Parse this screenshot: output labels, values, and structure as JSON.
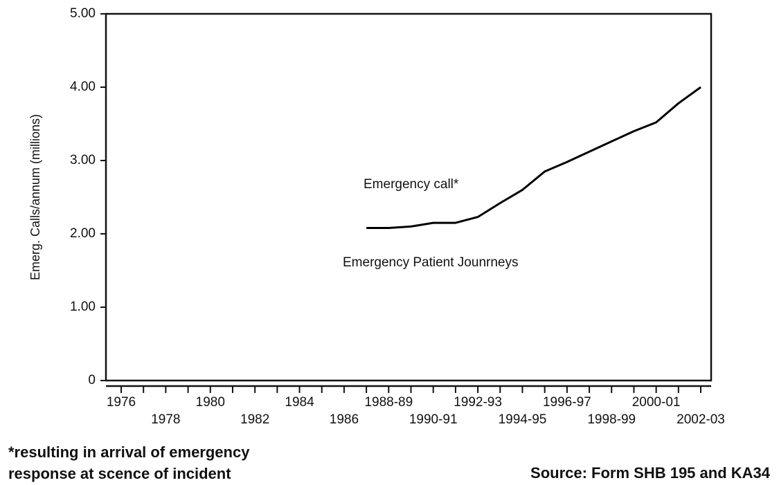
{
  "chart_data": {
    "type": "line",
    "y_label": "Emerg. Calls/annum (millions)",
    "categories": [
      "1976",
      null,
      "1978",
      null,
      "1980",
      null,
      "1982",
      null,
      "1984",
      null,
      "1986",
      null,
      "1988-89",
      null,
      "1990-91",
      null,
      "1992-93",
      null,
      "1994-95",
      null,
      "1996-97",
      null,
      "1998-99",
      null,
      "2000-01",
      null,
      "2002-03"
    ],
    "series": [
      {
        "name": "Emergency call*",
        "color": "#000000",
        "values": [
          null,
          null,
          null,
          null,
          null,
          null,
          null,
          null,
          null,
          null,
          null,
          2.08,
          2.08,
          2.1,
          2.15,
          2.15,
          2.23,
          2.42,
          2.6,
          2.85,
          2.98,
          3.12,
          3.26,
          3.4,
          3.52,
          3.78,
          4.0
        ]
      }
    ],
    "annotations": [
      "Emergency Patient Jounrneys"
    ],
    "ylim": [
      0,
      5
    ],
    "yticks": [
      0,
      {
        "value": 1,
        "label": "1.00"
      },
      {
        "value": 2,
        "label": "2.00"
      },
      {
        "value": 3,
        "label": "3.00"
      },
      {
        "value": 4,
        "label": "4.00"
      },
      {
        "value": 5,
        "label": "5.00"
      }
    ],
    "footnote": [
      "*resulting in arrival of emergency",
      "response at scence of incident"
    ],
    "source": "Source: Form SHB 195 and KA34"
  }
}
